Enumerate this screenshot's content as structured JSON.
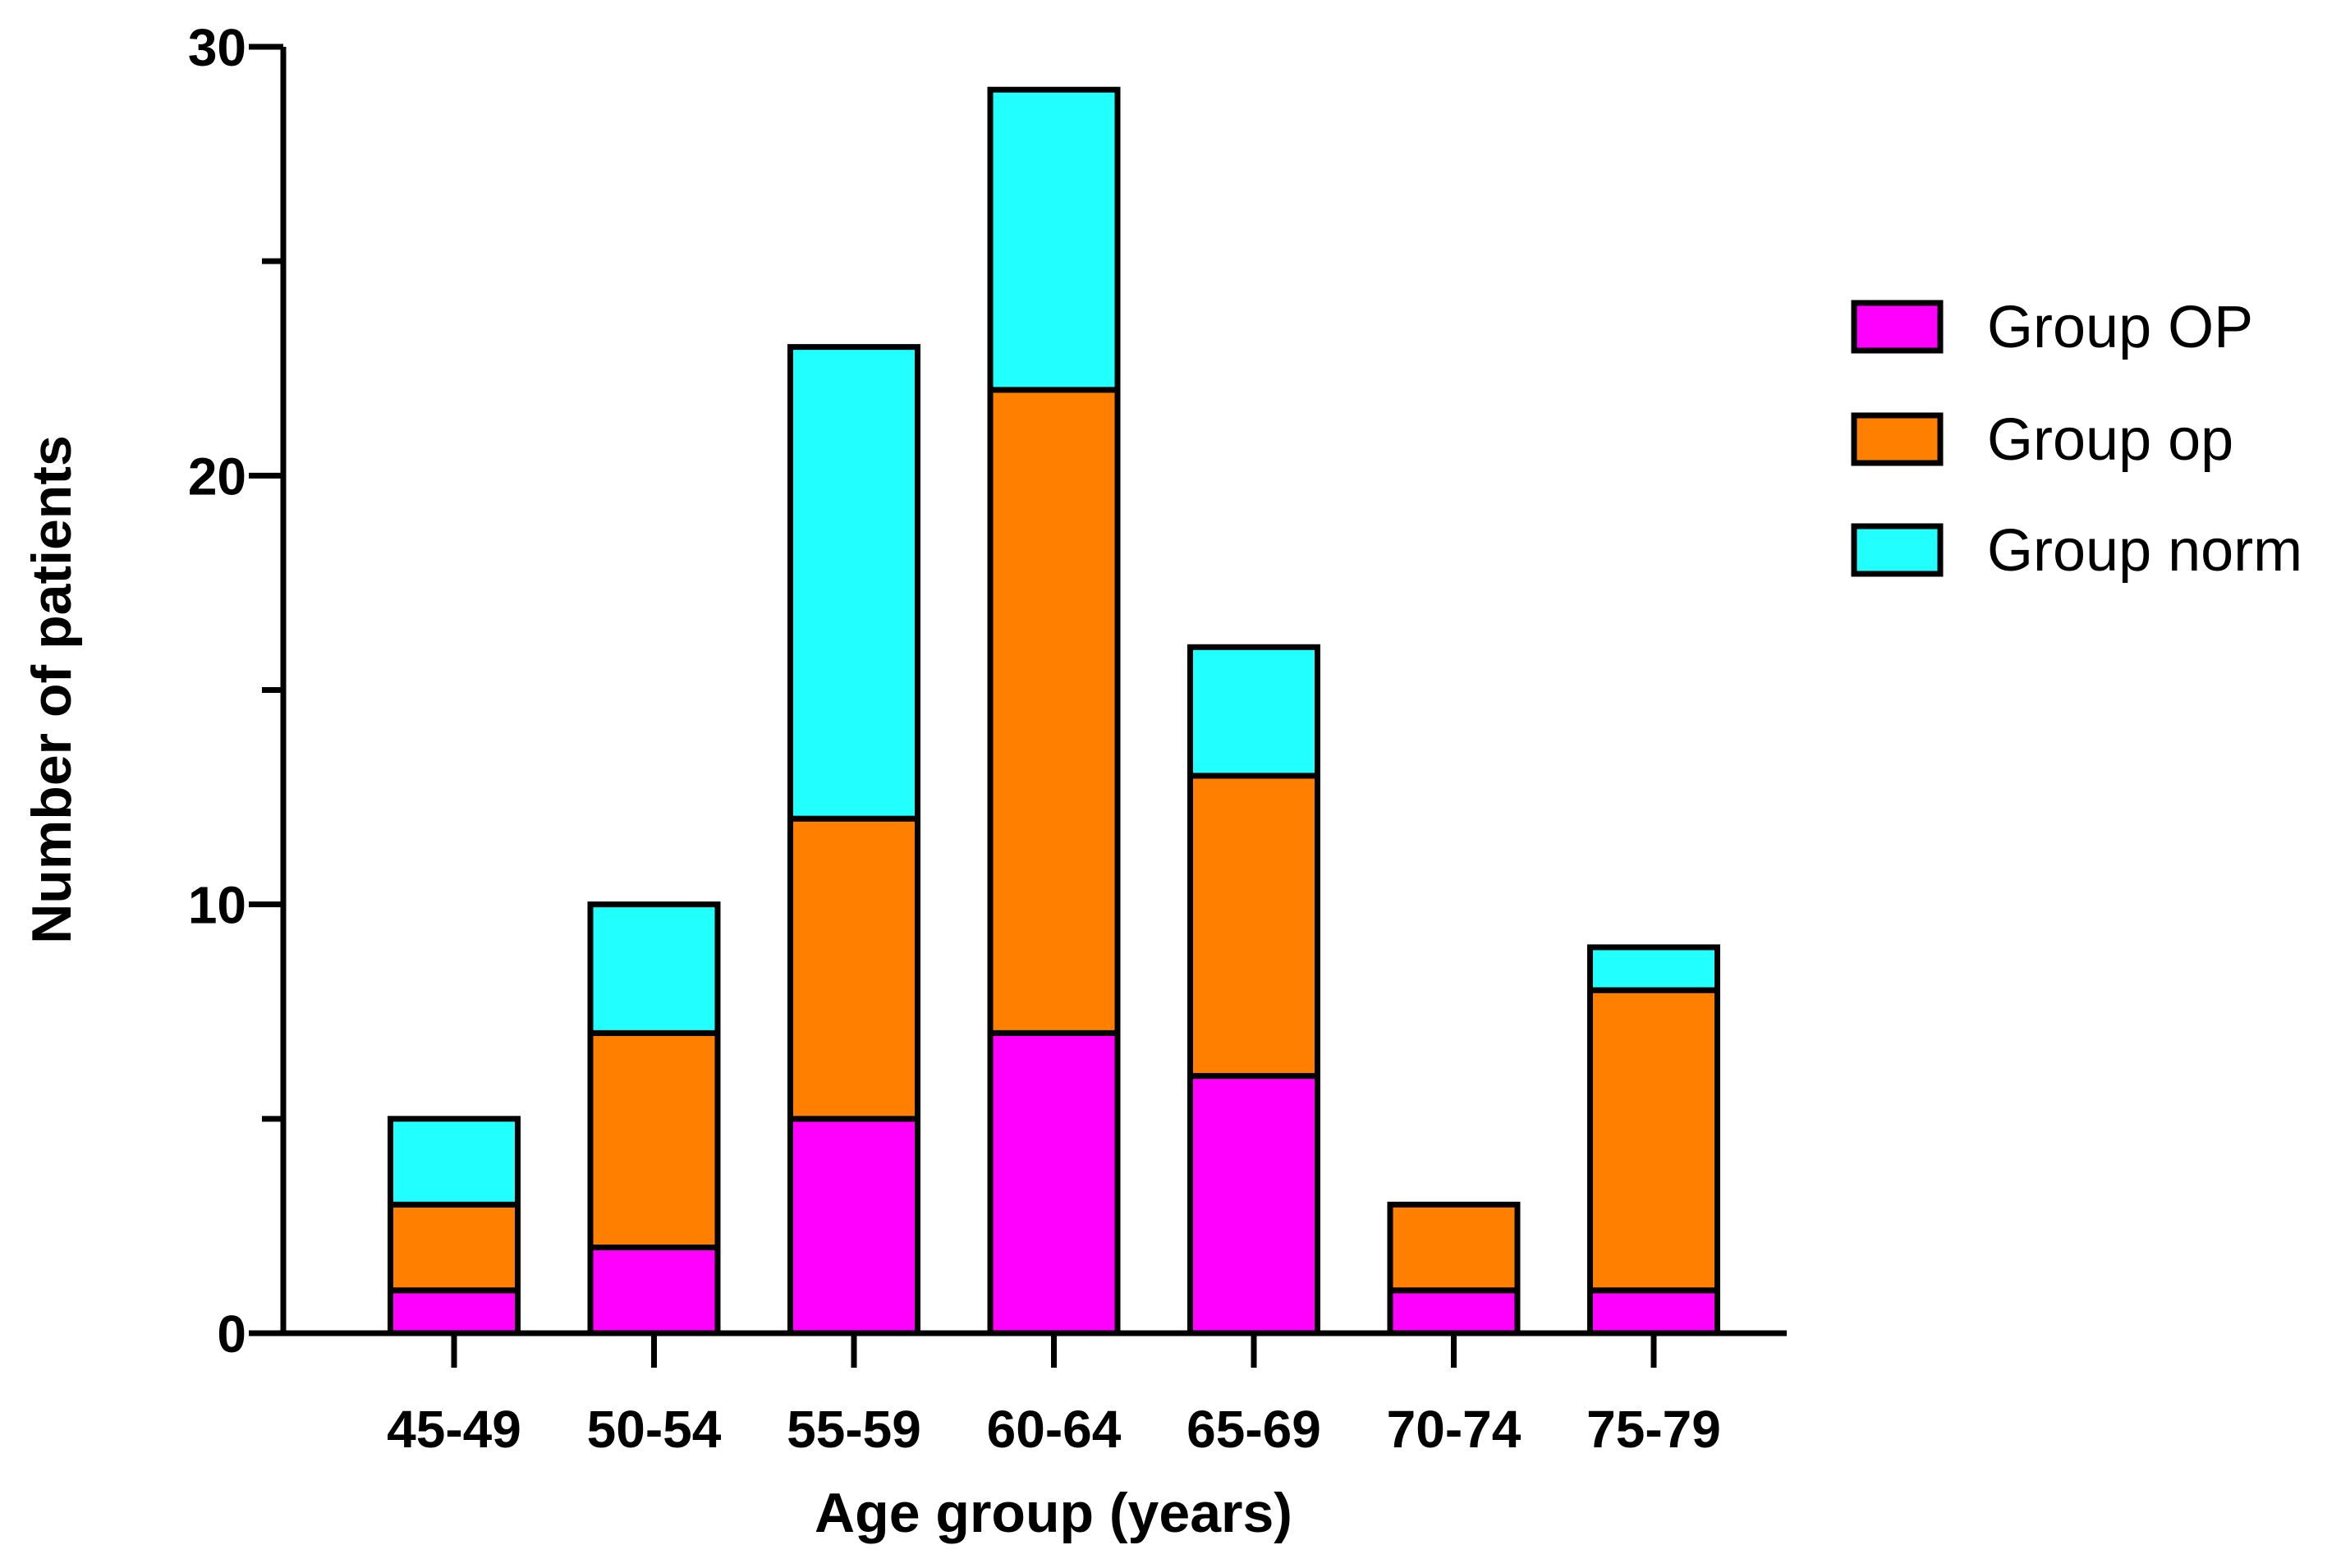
{
  "chart_data": {
    "type": "bar",
    "stacked": true,
    "categories": [
      "45-49",
      "50-54",
      "55-59",
      "60-64",
      "65-69",
      "70-74",
      "75-79"
    ],
    "series": [
      {
        "name": "Group OP",
        "color": "#ff00ff",
        "values": [
          1,
          2,
          5,
          7,
          6,
          1,
          1
        ]
      },
      {
        "name": "Group op",
        "color": "#ff8000",
        "values": [
          2,
          5,
          7,
          15,
          7,
          2,
          7
        ]
      },
      {
        "name": "Group norm",
        "color": "#22ffff",
        "values": [
          2,
          3,
          11,
          7,
          3,
          0,
          1
        ]
      }
    ],
    "xlabel": "Age group (years)",
    "ylabel": "Number of patients",
    "ylim": [
      0,
      30
    ],
    "yticks_major": [
      0,
      10,
      20,
      30
    ],
    "yticks_minor": [
      5,
      15,
      25
    ],
    "grid": false,
    "legend": "right"
  }
}
